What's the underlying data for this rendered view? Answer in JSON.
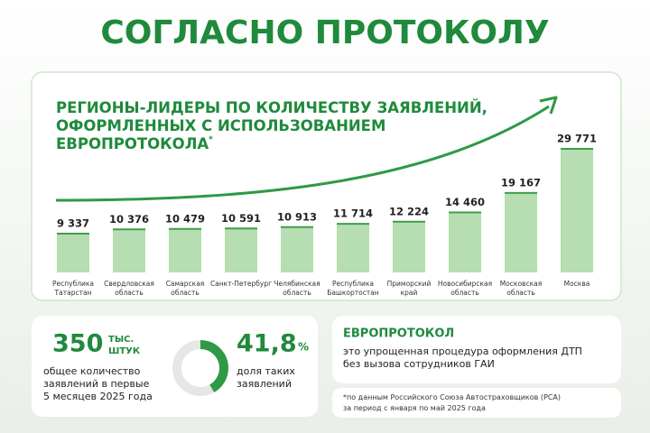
{
  "header": {
    "title": "СОГЛАСНО ПРОТОКОЛУ"
  },
  "chart_data": {
    "type": "bar",
    "title": [
      "РЕГИОНЫ-ЛИДЕРЫ ПО КОЛИЧЕСТВУ ЗАЯВЛЕНИЙ,",
      "ОФОРМЛЕННЫХ С ИСПОЛЬЗОВАНИЕМ",
      "ЕВРОПРОТОКОЛА"
    ],
    "title_mark": "*",
    "categories": [
      [
        "Республика",
        "Татарстан"
      ],
      [
        "Свердловская",
        "область"
      ],
      [
        "Самарская",
        "область"
      ],
      [
        "Санкт-Петербург"
      ],
      [
        "Челябинская",
        "область"
      ],
      [
        "Республика",
        "Башкортостан"
      ],
      [
        "Приморский",
        "край"
      ],
      [
        "Новосибирская",
        "область"
      ],
      [
        "Московская",
        "область"
      ],
      [
        "Москва"
      ]
    ],
    "values": [
      9337,
      10376,
      10479,
      10591,
      10913,
      11714,
      12224,
      14460,
      19167,
      29771
    ],
    "value_labels": [
      "9 337",
      "10 376",
      "10 479",
      "10 591",
      "10 913",
      "11 714",
      "12 224",
      "14 460",
      "19 167",
      "29 771"
    ],
    "color": "#b7ddb2",
    "edge_color": "#3d9e4a",
    "ylim": [
      0,
      30000
    ]
  },
  "stats": {
    "total": {
      "value": 350,
      "unit": [
        "ТЫС.",
        "ШТУК"
      ],
      "description": [
        "общее количество",
        "заявлений в первые",
        "5 месяцев 2025 года"
      ]
    },
    "share": {
      "value": 41.8,
      "label": "41,8",
      "unit": "%",
      "description": [
        "доля таких",
        "заявлений"
      ]
    }
  },
  "definition": {
    "title": "ЕВРОПРОТОКОЛ",
    "text": [
      "это упрощенная процедура оформления ДТП",
      "без вызова сотрудников ГАИ"
    ]
  },
  "footnote": [
    "*по данным Российского Союза Автостраховщиков (РСА)",
    "за период с января по май 2025 года"
  ]
}
